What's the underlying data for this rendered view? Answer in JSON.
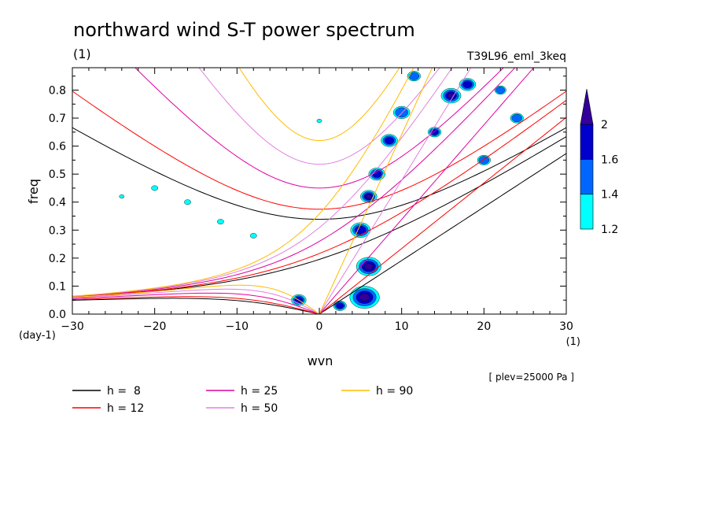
{
  "chart_data": {
    "type": "heatmap",
    "title": "northward wind S-T power spectrum",
    "subtitle": "(1)",
    "run_label": "T39L96_eml_3keq",
    "xlabel": "wvn",
    "ylabel": "freq",
    "x_unit_label": "(1)",
    "y_unit_label": "(day-1)",
    "plev_note": "[ plev=25000 Pa ]",
    "xlim": [
      -30,
      30
    ],
    "ylim": [
      0,
      0.88
    ],
    "x_ticks": [
      -30,
      -20,
      -10,
      0,
      10,
      20,
      30
    ],
    "y_ticks": [
      0.0,
      0.1,
      0.2,
      0.3,
      0.4,
      0.5,
      0.6,
      0.7,
      0.8
    ],
    "colorbar": {
      "levels": [
        1.2,
        1.4,
        1.6,
        2
      ],
      "tick_labels": [
        "1.2",
        "1.4",
        "1.6",
        "2"
      ],
      "colors": [
        "#00ffff",
        "#0066ff",
        "#0000cc",
        "#330099"
      ]
    },
    "dispersion_curves": [
      {
        "name": "h =  8",
        "h": 8,
        "color": "#000000"
      },
      {
        "name": "h = 12",
        "h": 12,
        "color": "#ff0000"
      },
      {
        "name": "h = 25",
        "h": 25,
        "color": "#e000a0"
      },
      {
        "name": "h = 50",
        "h": 50,
        "color": "#e080e0"
      },
      {
        "name": "h = 90",
        "h": 90,
        "color": "#ffbb00"
      }
    ],
    "power_blobs": [
      {
        "x": 5.5,
        "y": 0.06,
        "r": 1.8,
        "level": 3
      },
      {
        "x": 6.0,
        "y": 0.17,
        "r": 1.5,
        "level": 3
      },
      {
        "x": 5.0,
        "y": 0.3,
        "r": 1.2,
        "level": 2
      },
      {
        "x": 6.0,
        "y": 0.42,
        "r": 1.0,
        "level": 3
      },
      {
        "x": 7.0,
        "y": 0.5,
        "r": 1.0,
        "level": 2
      },
      {
        "x": 8.5,
        "y": 0.62,
        "r": 1.0,
        "level": 2
      },
      {
        "x": 10.0,
        "y": 0.72,
        "r": 1.0,
        "level": 1
      },
      {
        "x": 11.5,
        "y": 0.85,
        "r": 0.8,
        "level": 1
      },
      {
        "x": -2.5,
        "y": 0.05,
        "r": 0.9,
        "level": 2
      },
      {
        "x": 2.5,
        "y": 0.03,
        "r": 0.8,
        "level": 2
      },
      {
        "x": 16.0,
        "y": 0.78,
        "r": 1.2,
        "level": 3
      },
      {
        "x": 18.0,
        "y": 0.82,
        "r": 1.0,
        "level": 2
      },
      {
        "x": 14.0,
        "y": 0.65,
        "r": 0.8,
        "level": 2
      },
      {
        "x": 20.0,
        "y": 0.55,
        "r": 0.8,
        "level": 1
      },
      {
        "x": 24.0,
        "y": 0.7,
        "r": 0.8,
        "level": 1
      },
      {
        "x": 22.0,
        "y": 0.8,
        "r": 0.7,
        "level": 1
      },
      {
        "x": -20.0,
        "y": 0.45,
        "r": 0.4,
        "level": 0
      },
      {
        "x": -16.0,
        "y": 0.4,
        "r": 0.4,
        "level": 0
      },
      {
        "x": -12.0,
        "y": 0.33,
        "r": 0.4,
        "level": 0
      },
      {
        "x": -8.0,
        "y": 0.28,
        "r": 0.4,
        "level": 0
      },
      {
        "x": -24.0,
        "y": 0.42,
        "r": 0.3,
        "level": 0
      },
      {
        "x": 0.0,
        "y": 0.69,
        "r": 0.3,
        "level": 0
      }
    ]
  },
  "legend_items": [
    {
      "name": "h =  8",
      "color": "#000000"
    },
    {
      "name": "h = 12",
      "color": "#ff0000"
    },
    {
      "name": "h = 25",
      "color": "#e000a0"
    },
    {
      "name": "h = 50",
      "color": "#e080e0"
    },
    {
      "name": "h = 90",
      "color": "#ffbb00"
    }
  ]
}
